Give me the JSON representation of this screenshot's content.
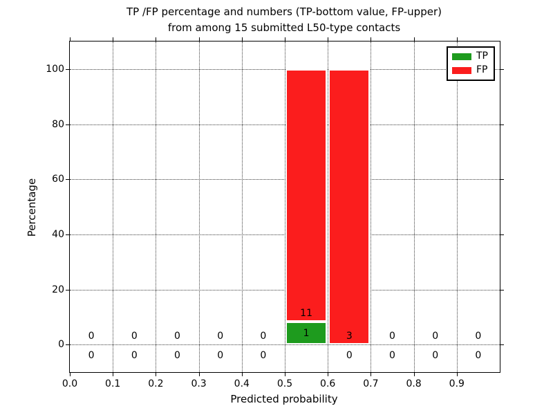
{
  "figure": {
    "background": "#ffffff"
  },
  "chart_data": {
    "type": "bar",
    "stacked": true,
    "title_line1": "TP /FP percentage and numbers (TP-bottom value, FP-upper)",
    "title_line2": "from among 15 submitted L50-type contacts",
    "xlabel": "Predicted probability",
    "ylabel": "Percentage",
    "xlim": [
      0.0,
      1.0
    ],
    "ylim": [
      -10,
      110
    ],
    "xticks": [
      0.0,
      0.1,
      0.2,
      0.3,
      0.4,
      0.5,
      0.6,
      0.7,
      0.8,
      0.9
    ],
    "xtick_labels": [
      "0.0",
      "0.1",
      "0.2",
      "0.3",
      "0.4",
      "0.5",
      "0.6",
      "0.7",
      "0.8",
      "0.9"
    ],
    "yticks": [
      0,
      20,
      40,
      60,
      80,
      100
    ],
    "ytick_labels": [
      "0",
      "20",
      "40",
      "60",
      "80",
      "100"
    ],
    "grid_style": "dotted",
    "legend_position": "upper right",
    "axes_color": "#000000",
    "series": [
      {
        "name": "TP",
        "color": "#1e9b1e"
      },
      {
        "name": "FP",
        "color": "#fb1d1d"
      }
    ],
    "bins": [
      {
        "x0": 0.0,
        "x1": 0.1,
        "tp_count": 0,
        "fp_count": 0,
        "tp_pct": 0,
        "fp_pct": 0
      },
      {
        "x0": 0.1,
        "x1": 0.2,
        "tp_count": 0,
        "fp_count": 0,
        "tp_pct": 0,
        "fp_pct": 0
      },
      {
        "x0": 0.2,
        "x1": 0.3,
        "tp_count": 0,
        "fp_count": 0,
        "tp_pct": 0,
        "fp_pct": 0
      },
      {
        "x0": 0.3,
        "x1": 0.4,
        "tp_count": 0,
        "fp_count": 0,
        "tp_pct": 0,
        "fp_pct": 0
      },
      {
        "x0": 0.4,
        "x1": 0.5,
        "tp_count": 0,
        "fp_count": 0,
        "tp_pct": 0,
        "fp_pct": 0
      },
      {
        "x0": 0.5,
        "x1": 0.6,
        "tp_count": 1,
        "fp_count": 11,
        "tp_pct": 8.33,
        "fp_pct": 91.67
      },
      {
        "x0": 0.6,
        "x1": 0.7,
        "tp_count": 0,
        "fp_count": 3,
        "tp_pct": 0,
        "fp_pct": 100
      },
      {
        "x0": 0.7,
        "x1": 0.8,
        "tp_count": 0,
        "fp_count": 0,
        "tp_pct": 0,
        "fp_pct": 0
      },
      {
        "x0": 0.8,
        "x1": 0.9,
        "tp_count": 0,
        "fp_count": 0,
        "tp_pct": 0,
        "fp_pct": 0
      },
      {
        "x0": 0.9,
        "x1": 1.0,
        "tp_count": 0,
        "fp_count": 0,
        "tp_pct": 0,
        "fp_pct": 0
      }
    ]
  }
}
